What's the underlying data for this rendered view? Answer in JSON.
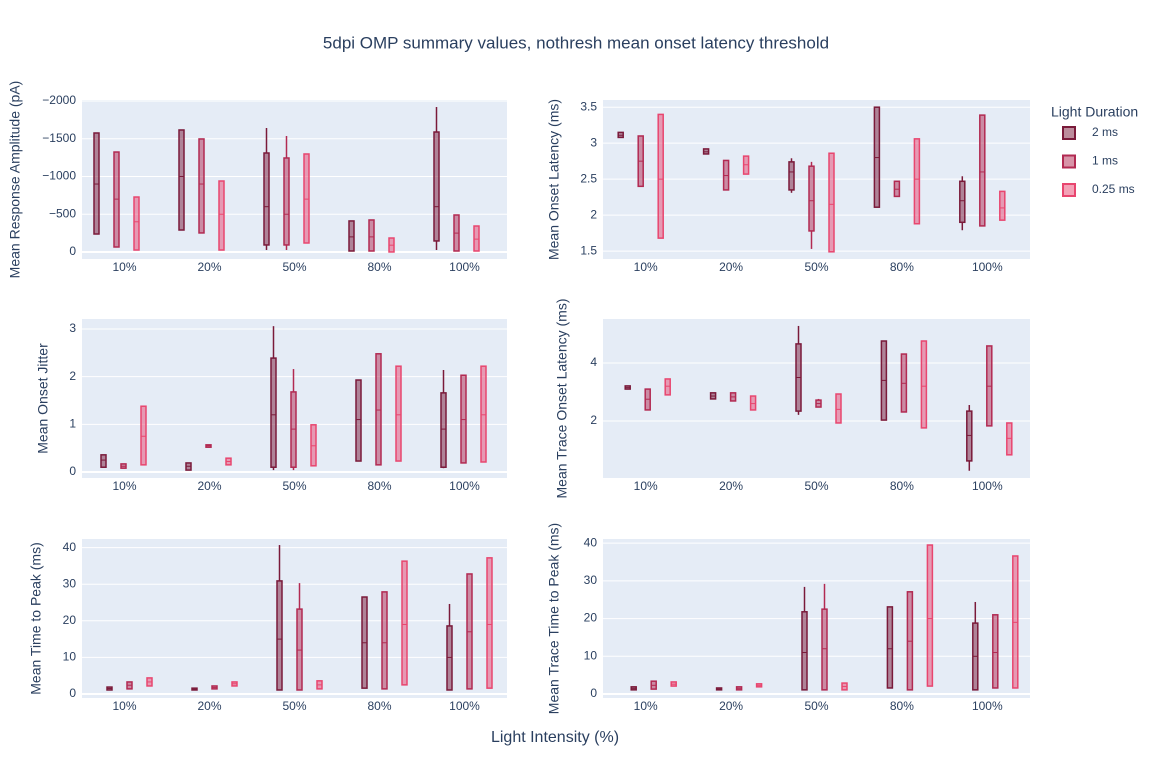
{
  "title": "5dpi OMP summary values, nothresh mean onset latency threshold",
  "xlabel": "Light Intensity (%)",
  "legend_title": "Light Duration",
  "chart_data": [
    {
      "type": "box",
      "ylabel": "Mean Response Amplitude (pA)",
      "categories": [
        "10%",
        "20%",
        "50%",
        "80%",
        "100%"
      ],
      "ylim": [
        93,
        -2013
      ],
      "yticks": [
        0,
        {
          "value": -500,
          "label": "−500"
        },
        {
          "value": -1000,
          "label": "−1000"
        },
        {
          "value": -1500,
          "label": "−1500"
        },
        {
          "value": -2000,
          "label": "−2000"
        }
      ],
      "series": [
        {
          "name": "2 ms",
          "color": "#7a1a3a",
          "values": [
            [
              -1576,
              -1576,
              -900,
              -238,
              -238
            ],
            [
              -1616,
              -1616,
              -1000,
              -291,
              -291
            ],
            [
              -1642,
              -1311,
              -600,
              -93,
              -26
            ],
            [
              -411,
              -411,
              -200,
              -13,
              -13
            ],
            [
              -1920,
              -1589,
              -600,
              -146,
              -26
            ]
          ]
        },
        {
          "name": "1 ms",
          "color": "#b22a52",
          "values": [
            [
              -1324,
              -1324,
              -700,
              -66,
              -66
            ],
            [
              -1497,
              -1497,
              -900,
              -252,
              -252
            ],
            [
              -1536,
              -1245,
              -500,
              -93,
              -26
            ],
            [
              -424,
              -424,
              -200,
              -13,
              -13
            ],
            [
              -490,
              -490,
              -250,
              -13,
              -13
            ]
          ]
        },
        {
          "name": "0.25 ms",
          "color": "#e8466f",
          "values": [
            [
              -728,
              -728,
              -400,
              -26,
              -26
            ],
            [
              -940,
              -940,
              -500,
              -26,
              -26
            ],
            [
              -1298,
              -1298,
              -700,
              -119,
              -119
            ],
            [
              -185,
              -185,
              -90,
              0,
              0
            ],
            [
              -344,
              -344,
              -170,
              -13,
              -13
            ]
          ]
        }
      ]
    },
    {
      "type": "box",
      "ylabel": "Mean Onset Latency (ms)",
      "categories": [
        "10%",
        "20%",
        "50%",
        "80%",
        "100%"
      ],
      "ylim": [
        1.39,
        3.6
      ],
      "yticks": [
        1.5,
        2,
        2.5,
        3,
        3.5
      ],
      "series": [
        {
          "name": "2 ms",
          "color": "#7a1a3a",
          "values": [
            [
              3.08,
              3.08,
              3.11,
              3.15,
              3.15
            ],
            [
              2.85,
              2.85,
              2.88,
              2.92,
              2.92
            ],
            [
              2.31,
              2.35,
              2.6,
              2.74,
              2.79
            ],
            [
              2.11,
              2.11,
              2.8,
              3.5,
              3.5
            ],
            [
              1.79,
              1.9,
              2.2,
              2.47,
              2.54
            ]
          ]
        },
        {
          "name": "1 ms",
          "color": "#b22a52",
          "values": [
            [
              2.4,
              2.4,
              2.75,
              3.1,
              3.1
            ],
            [
              2.35,
              2.35,
              2.55,
              2.76,
              2.76
            ],
            [
              1.53,
              1.78,
              2.2,
              2.68,
              2.74
            ],
            [
              2.26,
              2.26,
              2.36,
              2.47,
              2.47
            ],
            [
              1.85,
              1.85,
              2.6,
              3.39,
              3.39
            ]
          ]
        },
        {
          "name": "0.25 ms",
          "color": "#e8466f",
          "values": [
            [
              1.68,
              1.68,
              2.5,
              3.4,
              3.4
            ],
            [
              2.57,
              2.57,
              2.7,
              2.82,
              2.82
            ],
            [
              1.49,
              1.49,
              2.15,
              2.86,
              2.86
            ],
            [
              1.88,
              1.88,
              2.5,
              3.06,
              3.06
            ],
            [
              1.93,
              1.93,
              2.1,
              2.33,
              2.33
            ]
          ]
        }
      ]
    },
    {
      "type": "box",
      "ylabel": "Mean Onset Jitter",
      "categories": [
        "10%",
        "20%",
        "50%",
        "80%",
        "100%"
      ],
      "ylim": [
        -0.126,
        3.21
      ],
      "yticks": [
        0,
        1,
        2,
        3
      ],
      "series": [
        {
          "name": "2 ms",
          "color": "#7a1a3a",
          "values": [
            [
              0.1,
              0.1,
              0.25,
              0.36,
              0.36
            ],
            [
              0.04,
              0.04,
              0.12,
              0.19,
              0.19
            ],
            [
              0.04,
              0.1,
              1.2,
              2.39,
              3.06
            ],
            [
              0.23,
              0.23,
              1.1,
              1.93,
              1.93
            ],
            [
              0.08,
              0.1,
              0.9,
              1.66,
              2.14
            ]
          ]
        },
        {
          "name": "1 ms",
          "color": "#b22a52",
          "values": [
            [
              0.08,
              0.08,
              0.12,
              0.17,
              0.17
            ],
            [
              0.52,
              0.52,
              0.55,
              0.57,
              0.57
            ],
            [
              0.04,
              0.1,
              0.9,
              1.68,
              2.16
            ],
            [
              0.15,
              0.15,
              1.3,
              2.48,
              2.48
            ],
            [
              0.19,
              0.19,
              1.1,
              2.03,
              2.03
            ]
          ]
        },
        {
          "name": "0.25 ms",
          "color": "#e8466f",
          "values": [
            [
              0.15,
              0.15,
              0.75,
              1.38,
              1.38
            ],
            [
              0.15,
              0.15,
              0.22,
              0.29,
              0.29
            ],
            [
              0.13,
              0.13,
              0.55,
              0.99,
              0.99
            ],
            [
              0.23,
              0.23,
              1.2,
              2.22,
              2.22
            ],
            [
              0.21,
              0.21,
              1.2,
              2.22,
              2.22
            ]
          ]
        }
      ]
    },
    {
      "type": "box",
      "ylabel": "Mean Trace Onset Latency (ms)",
      "categories": [
        "10%",
        "20%",
        "50%",
        "80%",
        "100%"
      ],
      "ylim": [
        0.03,
        5.52
      ],
      "yticks": [
        2,
        4
      ],
      "series": [
        {
          "name": "2 ms",
          "color": "#7a1a3a",
          "values": [
            [
              3.1,
              3.1,
              3.15,
              3.21,
              3.21
            ],
            [
              2.76,
              2.76,
              2.86,
              2.97,
              2.97
            ],
            [
              2.21,
              2.34,
              3.5,
              4.66,
              5.28
            ],
            [
              2.03,
              2.03,
              3.4,
              4.76,
              4.76
            ],
            [
              0.28,
              0.62,
              1.5,
              2.34,
              2.55
            ]
          ]
        },
        {
          "name": "1 ms",
          "color": "#b22a52",
          "values": [
            [
              2.38,
              2.38,
              2.75,
              3.1,
              3.1
            ],
            [
              2.69,
              2.69,
              2.83,
              2.97,
              2.97
            ],
            [
              2.48,
              2.48,
              2.6,
              2.72,
              2.76
            ],
            [
              2.31,
              2.31,
              3.3,
              4.31,
              4.31
            ],
            [
              1.83,
              1.83,
              3.2,
              4.59,
              4.59
            ]
          ]
        },
        {
          "name": "0.25 ms",
          "color": "#e8466f",
          "values": [
            [
              2.9,
              2.9,
              3.2,
              3.45,
              3.45
            ],
            [
              2.38,
              2.38,
              2.6,
              2.86,
              2.86
            ],
            [
              1.93,
              1.93,
              2.4,
              2.93,
              2.93
            ],
            [
              1.76,
              1.76,
              3.2,
              4.76,
              4.76
            ],
            [
              0.83,
              0.83,
              1.4,
              1.93,
              1.93
            ]
          ]
        }
      ]
    },
    {
      "type": "box",
      "ylabel": "Mean Time to Peak (ms)",
      "categories": [
        "10%",
        "20%",
        "50%",
        "80%",
        "100%"
      ],
      "ylim": [
        -1.09,
        42.35
      ],
      "yticks": [
        0,
        10,
        20,
        30,
        40
      ],
      "series": [
        {
          "name": "2 ms",
          "color": "#7a1a3a",
          "values": [
            [
              1.1,
              1.1,
              1.5,
              1.9,
              1.9
            ],
            [
              1.1,
              1.1,
              1.3,
              1.6,
              1.6
            ],
            [
              1.1,
              1.1,
              15,
              30.9,
              40.7
            ],
            [
              1.6,
              1.6,
              14,
              26.5,
              26.5
            ],
            [
              1.1,
              1.1,
              10,
              18.6,
              24.6
            ]
          ]
        },
        {
          "name": "1 ms",
          "color": "#b22a52",
          "values": [
            [
              1.4,
              1.4,
              2.4,
              3.3,
              3.3
            ],
            [
              1.4,
              1.4,
              1.8,
              2.2,
              2.2
            ],
            [
              1.1,
              1.1,
              12,
              23.2,
              30.3
            ],
            [
              1.4,
              1.4,
              14,
              27.9,
              27.9
            ],
            [
              1.4,
              1.4,
              17,
              32.8,
              32.8
            ]
          ]
        },
        {
          "name": "0.25 ms",
          "color": "#e8466f",
          "values": [
            [
              2.2,
              2.2,
              3.3,
              4.4,
              4.4
            ],
            [
              2.2,
              2.2,
              2.8,
              3.3,
              3.3
            ],
            [
              1.4,
              1.4,
              2.5,
              3.6,
              3.6
            ],
            [
              2.5,
              2.5,
              19,
              36.3,
              36.3
            ],
            [
              1.6,
              1.6,
              19,
              37.2,
              37.2
            ]
          ]
        }
      ]
    },
    {
      "type": "box",
      "ylabel": "Mean Trace Time to Peak (ms)",
      "categories": [
        "10%",
        "20%",
        "50%",
        "80%",
        "100%"
      ],
      "ylim": [
        -1.06,
        41.1
      ],
      "yticks": [
        0,
        10,
        20,
        30,
        40
      ],
      "series": [
        {
          "name": "2 ms",
          "color": "#7a1a3a",
          "values": [
            [
              1.1,
              1.1,
              1.5,
              1.9,
              1.9
            ],
            [
              1.1,
              1.1,
              1.3,
              1.6,
              1.6
            ],
            [
              1.1,
              1.1,
              11,
              21.8,
              28.4
            ],
            [
              1.6,
              1.6,
              12,
              23.1,
              23.1
            ],
            [
              1.1,
              1.1,
              10,
              18.8,
              24.4
            ]
          ]
        },
        {
          "name": "1 ms",
          "color": "#b22a52",
          "values": [
            [
              1.3,
              1.3,
              2.3,
              3.4,
              3.4
            ],
            [
              1.1,
              1.1,
              1.5,
              1.9,
              1.9
            ],
            [
              1.1,
              1.1,
              12,
              22.5,
              29.2
            ],
            [
              1.1,
              1.1,
              14,
              27.1,
              27.1
            ],
            [
              1.6,
              1.6,
              11,
              21.0,
              21.0
            ]
          ]
        },
        {
          "name": "0.25 ms",
          "color": "#e8466f",
          "values": [
            [
              2.1,
              2.1,
              2.6,
              3.2,
              3.2
            ],
            [
              1.9,
              1.9,
              2.3,
              2.7,
              2.7
            ],
            [
              1.1,
              1.1,
              2.0,
              2.9,
              2.9
            ],
            [
              2.1,
              2.1,
              20,
              39.5,
              39.5
            ],
            [
              1.6,
              1.6,
              19,
              36.6,
              36.6
            ]
          ]
        }
      ]
    }
  ]
}
